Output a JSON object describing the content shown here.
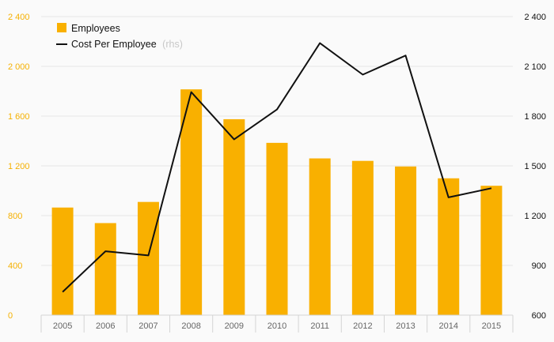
{
  "chart_data": {
    "type": "bar+line",
    "categories": [
      "2005",
      "2006",
      "2007",
      "2008",
      "2009",
      "2010",
      "2011",
      "2012",
      "2013",
      "2014",
      "2015"
    ],
    "series": [
      {
        "name": "Employees",
        "type": "bar",
        "axis": "left",
        "values": [
          865,
          740,
          910,
          1815,
          1575,
          1385,
          1260,
          1240,
          1195,
          1100,
          1040
        ]
      },
      {
        "name": "Cost Per Employee",
        "name_suffix": "(rhs)",
        "type": "line",
        "axis": "right",
        "values": [
          740,
          985,
          960,
          1945,
          1660,
          1840,
          2240,
          2050,
          2165,
          1310,
          1365
        ]
      }
    ],
    "left_axis": {
      "ylim": [
        0,
        2400
      ],
      "ticks": [
        0,
        400,
        800,
        1200,
        1600,
        2000,
        2400
      ],
      "tick_labels": [
        "0",
        "400",
        "800",
        "1 200",
        "1 600",
        "2 000",
        "2 400"
      ]
    },
    "right_axis": {
      "ylim": [
        600,
        2400
      ],
      "ticks": [
        600,
        900,
        1200,
        1500,
        1800,
        2100,
        2400
      ],
      "tick_labels": [
        "600",
        "900",
        "1 200",
        "1 500",
        "1 800",
        "2 100",
        "2 400"
      ]
    },
    "legend_position": "top-left",
    "grid": true,
    "colors": {
      "bar": "#f9b000",
      "line": "#111111",
      "left_ticks": "#f5b000",
      "right_ticks": "#111111",
      "grid": "#e6e6e6"
    }
  }
}
